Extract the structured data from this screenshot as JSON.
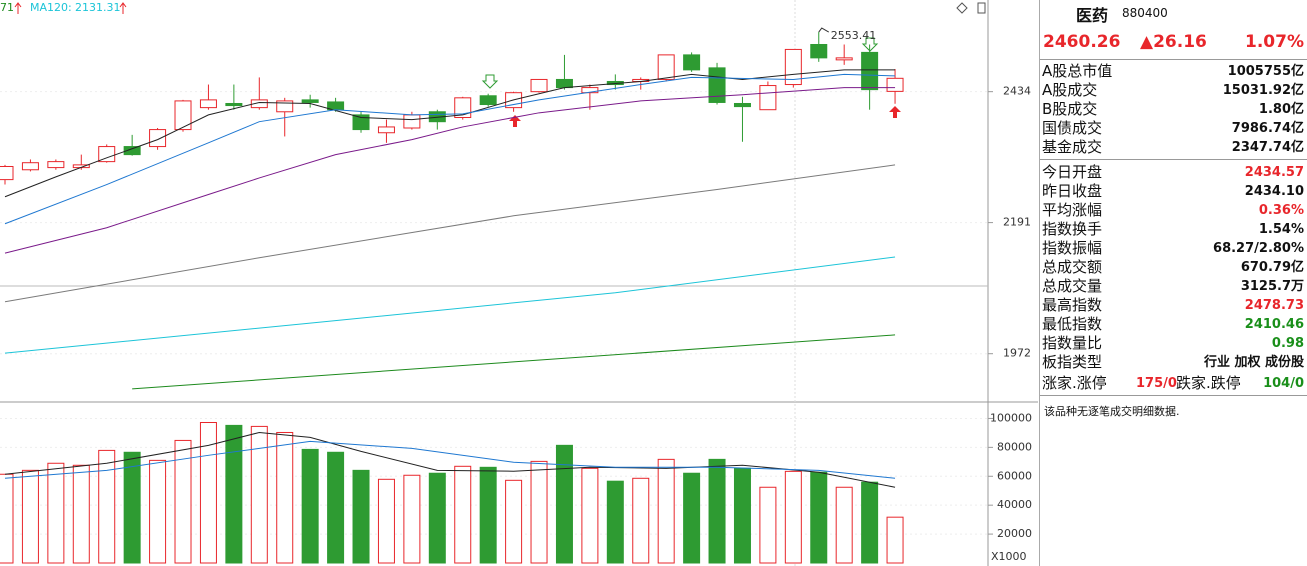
{
  "chart_data": [
    {
      "type": "candlestick",
      "log_scale": true,
      "grid": true,
      "ylim": [
        1900,
        2620
      ],
      "yticks": [
        1972,
        2191,
        2434
      ],
      "up_color": "#e8262b",
      "down_color": "#2e9b32",
      "legend_clipped": "71",
      "open": [
        2268,
        2286,
        2290,
        2290,
        2301,
        2329,
        2329,
        2361,
        2403,
        2411,
        2403,
        2395,
        2418,
        2414,
        2389,
        2355,
        2364,
        2395,
        2384,
        2426,
        2403,
        2434,
        2458,
        2432,
        2454,
        2454,
        2458,
        2507,
        2481,
        2411,
        2399,
        2448,
        2528,
        2497,
        2512,
        2434.57
      ],
      "high": [
        2295,
        2305,
        2305,
        2314,
        2333,
        2351,
        2364,
        2418,
        2448,
        2448,
        2462,
        2422,
        2428,
        2422,
        2395,
        2380,
        2395,
        2399,
        2424,
        2430,
        2434,
        2458,
        2507,
        2448,
        2468,
        2462,
        2507,
        2512,
        2491,
        2424,
        2454,
        2518,
        2553.41,
        2528,
        2528,
        2478.73
      ],
      "low": [
        2259,
        2283,
        2286,
        2286,
        2299,
        2312,
        2323,
        2357,
        2399,
        2399,
        2399,
        2348,
        2403,
        2395,
        2355,
        2336,
        2361,
        2361,
        2380,
        2405,
        2395,
        2432,
        2438,
        2399,
        2438,
        2438,
        2454,
        2473,
        2409,
        2338,
        2399,
        2442,
        2493,
        2487,
        2399,
        2410.46
      ],
      "close": [
        2292,
        2299,
        2301,
        2295,
        2329,
        2314,
        2361,
        2416,
        2418,
        2407,
        2418,
        2416,
        2413,
        2399,
        2361,
        2366,
        2389,
        2376,
        2422,
        2409,
        2432,
        2458,
        2442,
        2442,
        2448,
        2458,
        2507,
        2477,
        2413,
        2405,
        2446,
        2518,
        2501,
        2501,
        2438,
        2460.26
      ],
      "lines": [
        {
          "color": "#222222",
          "x": [
            0,
            2,
            4,
            6,
            8,
            10,
            12,
            14,
            16,
            18,
            20,
            22,
            25,
            27,
            29,
            31,
            33,
            35
          ],
          "values": [
            2237,
            2273,
            2308,
            2342,
            2389,
            2413,
            2411,
            2384,
            2380,
            2389,
            2418,
            2442,
            2454,
            2468,
            2458,
            2468,
            2477,
            2477
          ]
        },
        {
          "color": "#1f78d1",
          "x": [
            0,
            4,
            8,
            10,
            13,
            16,
            18,
            21,
            25,
            27,
            31,
            33,
            35
          ],
          "values": [
            2189,
            2259,
            2336,
            2376,
            2399,
            2389,
            2391,
            2418,
            2448,
            2462,
            2458,
            2468,
            2465
          ]
        },
        {
          "color": "#7a1a8a",
          "x": [
            0,
            4,
            8,
            10,
            13,
            16,
            18,
            21,
            25,
            29,
            33,
            35
          ],
          "values": [
            2138,
            2182,
            2241,
            2271,
            2314,
            2342,
            2366,
            2393,
            2416,
            2428,
            2442,
            2442
          ]
        },
        {
          "color": "#7a7a7a",
          "x": [
            0,
            10,
            20,
            28,
            35
          ],
          "values": [
            2056,
            2130,
            2203,
            2250,
            2295
          ]
        },
        {
          "name": "MA120:",
          "color": "#1cc4d8",
          "x": [
            0,
            12,
            24,
            35
          ],
          "values": [
            1973,
            2021,
            2071,
            2131.31
          ]
        },
        {
          "color": "#1d8a1d",
          "x": [
            5,
            35
          ],
          "values": [
            1917,
            2002
          ]
        }
      ]
    },
    {
      "type": "bar",
      "grid": true,
      "ylim": [
        0,
        110000
      ],
      "yticks": [
        20000,
        40000,
        60000,
        80000,
        100000
      ],
      "unit_label": "X1000",
      "values": [
        61400,
        64100,
        69000,
        67600,
        77900,
        76600,
        71000,
        84800,
        97200,
        95200,
        94500,
        90300,
        78600,
        76600,
        64100,
        57900,
        60700,
        62100,
        66900,
        66200,
        57200,
        70300,
        81400,
        65500,
        56600,
        58600,
        71700,
        62100,
        71700,
        65500,
        52400,
        63400,
        62800,
        52400,
        55900,
        31700
      ],
      "lines": [
        {
          "color": "#222222",
          "x": [
            0,
            4,
            8,
            10,
            12,
            14,
            17,
            20,
            23,
            26,
            29,
            32,
            35
          ],
          "values": [
            61400,
            69000,
            81400,
            90300,
            86900,
            77200,
            64100,
            63500,
            66200,
            65500,
            67600,
            62800,
            52400
          ]
        },
        {
          "color": "#1f78d1",
          "x": [
            0,
            4,
            8,
            12,
            16,
            20,
            24,
            28,
            32,
            35
          ],
          "values": [
            58600,
            64100,
            74500,
            84100,
            79300,
            69700,
            66200,
            66200,
            64100,
            58600
          ]
        }
      ]
    }
  ],
  "panel": {
    "title": "医药",
    "code": "880400",
    "price": "2460.26",
    "change": "▲26.16",
    "change_pct": "1.07%",
    "groups": [
      [
        {
          "label": "A股总市值",
          "value": "1005755亿"
        },
        {
          "label": "A股成交",
          "value": "15031.92亿"
        },
        {
          "label": "B股成交",
          "value": "1.80亿"
        },
        {
          "label": "国债成交",
          "value": "7986.74亿"
        },
        {
          "label": "基金成交",
          "value": "2347.74亿"
        }
      ],
      [
        {
          "label": "今日开盘",
          "value": "2434.57",
          "color": "#e8262b"
        },
        {
          "label": "昨日收盘",
          "value": "2434.10"
        },
        {
          "label": "平均涨幅",
          "value": "0.36%",
          "color": "#e8262b"
        },
        {
          "label": "指数换手",
          "value": "1.54%"
        },
        {
          "label": "指数振幅",
          "value": "68.27/2.80%"
        },
        {
          "label": "总成交额",
          "value": "670.79亿"
        },
        {
          "label": "总成交量",
          "value": "3125.7万"
        },
        {
          "label": "最高指数",
          "value": "2478.73",
          "color": "#e8262b"
        },
        {
          "label": "最低指数",
          "value": "2410.46",
          "color": "#1a8f1a"
        },
        {
          "label": "指数量比",
          "value": "0.98",
          "color": "#1a8f1a"
        },
        {
          "label": "板指类型",
          "value": "行业 加权 成份股"
        }
      ]
    ],
    "breadth": {
      "up_label": "涨家.涨停",
      "up_value": "175/0",
      "down_label": "跌家.跌停",
      "down_value": "104/0"
    },
    "note": "该品种无逐笔成交明细数据."
  }
}
